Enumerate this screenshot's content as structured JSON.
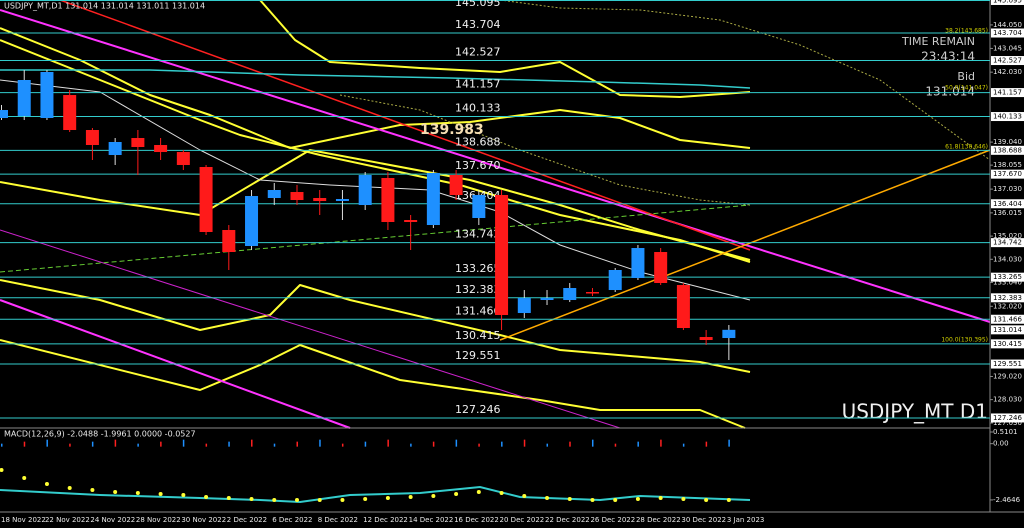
{
  "chart_data": {
    "type": "candlestick",
    "title": "USDJPY_MT,D1  131.014 131.014 131.011 131.014",
    "watermark": "USDJPY_MT D1",
    "categories": [
      "18 Nov 2022",
      null,
      "22 Nov 2022",
      null,
      "24 Nov 2022",
      null,
      "28 Nov 2022",
      null,
      "30 Nov 2022",
      null,
      "2 Dec 2022",
      null,
      "6 Dec 2022",
      null,
      "8 Dec 2022",
      null,
      "12 Dec 2022",
      null,
      "14 Dec 2022",
      null,
      "16 Dec 2022",
      null,
      "20 Dec 2022",
      null,
      "22 Dec 2022",
      null,
      "26 Dec 2022",
      null,
      "28 Dec 2022",
      null,
      "30 Dec 2022",
      null,
      "3 Jan 2023"
    ],
    "open": [
      140.07,
      140.156,
      140.07,
      141.053,
      139.557,
      138.488,
      139.215,
      138.916,
      138.616,
      137.975,
      135.282,
      134.598,
      136.65,
      136.906,
      136.65,
      136.521,
      136.35,
      137.505,
      135.709,
      135.495,
      137.633,
      135.795,
      136.778,
      131.733,
      132.289,
      132.289,
      132.631,
      132.716,
      133.23,
      134.341,
      132.93,
      130.707,
      130.664
    ],
    "high": [
      140.626,
      142.122,
      142.122,
      141.267,
      139.642,
      139.215,
      139.557,
      139.215,
      138.702,
      138.061,
      135.495,
      136.992,
      137.291,
      137.206,
      136.992,
      136.992,
      137.761,
      137.761,
      135.923,
      137.847,
      137.847,
      136.992,
      136.992,
      132.716,
      132.716,
      133.016,
      132.802,
      133.657,
      134.64,
      134.512,
      133.016,
      131.006,
      131.22
    ],
    "low": [
      139.984,
      139.984,
      139.984,
      139.471,
      138.274,
      138.061,
      137.633,
      138.274,
      137.847,
      135.068,
      133.572,
      134.427,
      136.35,
      136.35,
      135.923,
      135.709,
      136.137,
      135.282,
      134.427,
      135.367,
      136.564,
      135.495,
      131.006,
      131.519,
      132.075,
      132.203,
      132.46,
      132.631,
      133.144,
      132.93,
      131.006,
      130.365,
      129.724
    ],
    "close": [
      140.412,
      141.695,
      142.037,
      139.557,
      138.916,
      139.044,
      138.83,
      138.616,
      138.061,
      135.196,
      134.341,
      136.735,
      136.992,
      136.564,
      136.521,
      136.607,
      137.633,
      135.624,
      135.624,
      137.719,
      136.778,
      136.778,
      131.648,
      132.374,
      132.374,
      132.802,
      132.588,
      133.572,
      134.512,
      133.016,
      131.092,
      130.579,
      131.014
    ],
    "up_color": "#1e90ff",
    "down_color": "#ff1a1a",
    "ylim": [
      126.817,
      145.115
    ],
    "yticks": [
      {
        "value": 144.05,
        "label": "144.050"
      },
      143.045,
      {
        "value": 142.03,
        "label": "142.030"
      },
      {
        "value": 139.04,
        "label": "139.040"
      },
      138.055,
      {
        "value": 137.03,
        "label": "137.030"
      },
      136.015,
      {
        "value": 135.02,
        "label": "135.020"
      },
      {
        "value": 134.03,
        "label": "134.030"
      },
      {
        "value": 133.04,
        "label": "133.040"
      },
      {
        "value": 132.02,
        "label": "132.020"
      },
      {
        "value": 129.02,
        "label": "129.020"
      },
      {
        "value": 128.03,
        "label": "128.030"
      },
      {
        "value": 127.03,
        "label": "127.030"
      }
    ],
    "levels": [
      145.095,
      143.704,
      142.527,
      141.157,
      140.133,
      138.688,
      {
        "value": 137.67,
        "label": "137.670"
      },
      136.404,
      134.742,
      133.265,
      132.383,
      131.466,
      130.415,
      129.551,
      127.246
    ],
    "level_color": "#33cccc",
    "marker": 139.983,
    "fib_labels": [
      "38.2(143.685)",
      "50.0(141.047)",
      "61.8(138.646)",
      "100.0(130.395)"
    ],
    "info": {
      "time_label": "TIME REMAIN",
      "time": "23:43:14",
      "bid_label": "Bid",
      "bid": 131.014
    },
    "macd": {
      "label": "MACD(12,26,9) -2.0488 -1.9961 0.0000 -0.0527",
      "ylim": [
        -2.993,
        0.598
      ],
      "yticks": [
        0.5101,
        {
          "value": 0,
          "label": "0.00"
        },
        -2.4646
      ]
    }
  }
}
